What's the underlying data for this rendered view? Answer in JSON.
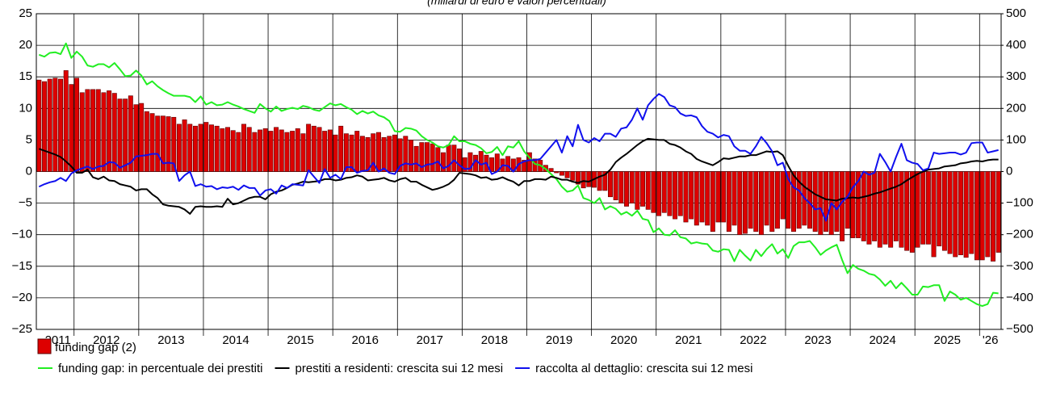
{
  "chart_data": {
    "type": "combo",
    "title": "(miliardi di euro e valori percentuali)",
    "categories": [
      null,
      null,
      null,
      null,
      "2011",
      null,
      null,
      null,
      null,
      null,
      null,
      null,
      null,
      "2012",
      null,
      null,
      null,
      null,
      null,
      null,
      null,
      null,
      null,
      null,
      null,
      "2013",
      null,
      null,
      null,
      null,
      null,
      null,
      null,
      null,
      null,
      null,
      null,
      "2014",
      null,
      null,
      null,
      null,
      null,
      null,
      null,
      null,
      null,
      null,
      null,
      "2015",
      null,
      null,
      null,
      null,
      null,
      null,
      null,
      null,
      null,
      null,
      null,
      "2016",
      null,
      null,
      null,
      null,
      null,
      null,
      null,
      null,
      null,
      null,
      null,
      "2017",
      null,
      null,
      null,
      null,
      null,
      null,
      null,
      null,
      null,
      null,
      null,
      "2018",
      null,
      null,
      null,
      null,
      null,
      null,
      null,
      null,
      null,
      null,
      null,
      "2019",
      null,
      null,
      null,
      null,
      null,
      null,
      null,
      null,
      null,
      null,
      null,
      "2020",
      null,
      null,
      null,
      null,
      null,
      null,
      null,
      null,
      null,
      null,
      null,
      "2021",
      null,
      null,
      null,
      null,
      null,
      null,
      null,
      null,
      null,
      null,
      null,
      "2022",
      null,
      null,
      null,
      null,
      null,
      null,
      null,
      null,
      null,
      null,
      null,
      "2023",
      null,
      null,
      null,
      null,
      null,
      null,
      null,
      null,
      null,
      null,
      null,
      "2024",
      null,
      null,
      null,
      null,
      null,
      null,
      null,
      null,
      null,
      null,
      null,
      "2025",
      null,
      null,
      null,
      null,
      null,
      null,
      null,
      "'26",
      null
    ],
    "ylim": [
      -25,
      25
    ],
    "yticks": [
      25,
      20,
      15,
      10,
      5,
      0,
      {
        "value": -5,
        "label": "−5"
      },
      {
        "value": -10,
        "label": "−10"
      },
      {
        "value": -15,
        "label": "−15"
      },
      {
        "value": -20,
        "label": "−20"
      },
      {
        "value": -25,
        "label": "−25"
      }
    ],
    "y2lim": [
      -500,
      500
    ],
    "y2ticks": [
      500,
      400,
      300,
      200,
      100,
      0,
      {
        "value": -100,
        "label": "−100"
      },
      {
        "value": -200,
        "label": "−200"
      },
      {
        "value": -300,
        "label": "−300"
      },
      {
        "value": -400,
        "label": "−400"
      },
      {
        "value": -500,
        "label": "−500"
      }
    ],
    "grid": true,
    "series": [
      {
        "name": "funding gap (2)",
        "type": "bar",
        "axis": "y2",
        "color": "#dd0000",
        "values": [
          290,
          285,
          293,
          296,
          293,
          320,
          276,
          296,
          250,
          260,
          260,
          260,
          250,
          256,
          248,
          230,
          230,
          240,
          212,
          216,
          190,
          184,
          176,
          176,
          174,
          172,
          150,
          164,
          150,
          144,
          150,
          156,
          148,
          144,
          136,
          140,
          130,
          124,
          150,
          140,
          124,
          132,
          136,
          128,
          140,
          132,
          124,
          128,
          136,
          120,
          150,
          144,
          140,
          128,
          132,
          116,
          144,
          120,
          116,
          128,
          112,
          108,
          120,
          124,
          108,
          112,
          116,
          104,
          112,
          100,
          80,
          92,
          92,
          88,
          76,
          60,
          84,
          84,
          72,
          44,
          60,
          52,
          64,
          52,
          44,
          56,
          40,
          48,
          40,
          44,
          36,
          60,
          40,
          36,
          20,
          10,
          -4,
          -12,
          -20,
          -28,
          -40,
          -52,
          -48,
          -50,
          -60,
          -60,
          -80,
          -90,
          -100,
          -110,
          -100,
          -120,
          -110,
          -120,
          -130,
          -140,
          -130,
          -140,
          -150,
          -140,
          -160,
          -150,
          -170,
          -160,
          -170,
          -190,
          -160,
          -160,
          -190,
          -170,
          -200,
          -196,
          -180,
          -190,
          -200,
          -170,
          -190,
          -180,
          -150,
          -180,
          -190,
          -180,
          -170,
          -180,
          -190,
          -200,
          -190,
          -200,
          -190,
          -220,
          -180,
          -210,
          -210,
          -220,
          -230,
          -220,
          -240,
          -230,
          -240,
          -220,
          -240,
          -250,
          -256,
          -240,
          -230,
          -230,
          -270,
          -236,
          -250,
          -260,
          -270,
          -264,
          -272,
          -260,
          -280,
          -280,
          -270,
          -284,
          -256
        ]
      },
      {
        "name": "funding gap: in percentuale dei prestiti",
        "type": "line",
        "color": "#22ee22",
        "values": [
          18.5,
          18.2,
          18.8,
          18.9,
          18.6,
          20.3,
          18.0,
          19.0,
          18.2,
          16.8,
          16.6,
          17.0,
          17.0,
          16.5,
          17.2,
          16.2,
          15.1,
          15.2,
          16.0,
          15.2,
          13.8,
          14.3,
          13.5,
          12.9,
          12.4,
          12.0,
          12.0,
          12.0,
          11.8,
          11.0,
          11.9,
          10.6,
          11.0,
          10.5,
          10.6,
          11.0,
          10.6,
          10.3,
          9.9,
          9.6,
          9.3,
          10.7,
          10.0,
          9.5,
          10.3,
          9.6,
          9.9,
          10.1,
          9.9,
          10.4,
          10.2,
          9.8,
          9.6,
          10.2,
          10.8,
          10.5,
          10.7,
          10.2,
          9.8,
          9.1,
          9.6,
          9.2,
          9.5,
          8.9,
          8.6,
          8.0,
          6.4,
          6.3,
          6.9,
          6.8,
          6.5,
          5.6,
          5.0,
          4.6,
          4.0,
          3.8,
          4.2,
          5.6,
          4.8,
          4.8,
          4.4,
          4.2,
          3.7,
          2.9,
          3.1,
          3.9,
          2.6,
          4.0,
          3.8,
          4.8,
          3.2,
          2.2,
          1.2,
          1.0,
          0.4,
          -0.4,
          -1.2,
          -2.4,
          -3.2,
          -3.0,
          -2.2,
          -4.2,
          -4.5,
          -5.0,
          -4.2,
          -6.0,
          -5.5,
          -5.9,
          -6.8,
          -6.4,
          -7.0,
          -6.2,
          -7.5,
          -7.7,
          -9.6,
          -9.0,
          -10.0,
          -10.1,
          -9.3,
          -10.4,
          -10.6,
          -11.4,
          -11.2,
          -11.4,
          -11.5,
          -12.5,
          -12.7,
          -12.3,
          -12.4,
          -14.2,
          -12.4,
          -13.3,
          -14.1,
          -12.4,
          -13.4,
          -12.3,
          -11.5,
          -13.0,
          -12.3,
          -13.7,
          -11.8,
          -11.2,
          -11.2,
          -11.0,
          -12.0,
          -13.2,
          -12.5,
          -12.0,
          -11.6,
          -14.0,
          -16.1,
          -14.8,
          -15.4,
          -15.7,
          -16.2,
          -16.4,
          -17.1,
          -18.1,
          -17.3,
          -18.5,
          -17.6,
          -18.5,
          -19.5,
          -19.5,
          -18.2,
          -18.3,
          -18.0,
          -18.0,
          -20.5,
          -19.0,
          -19.5,
          -20.3,
          -20.0,
          -20.5,
          -21.0,
          -21.3,
          -21.0,
          -19.2,
          -19.3
        ]
      },
      {
        "name": "prestiti a residenti: crescita sui 12 mesi",
        "type": "line",
        "color": "#000000",
        "values": [
          3.6,
          3.3,
          3.0,
          2.7,
          2.3,
          1.6,
          0.8,
          -0.2,
          -0.2,
          0.3,
          -0.9,
          -1.2,
          -0.8,
          -1.4,
          -1.5,
          -2.0,
          -2.2,
          -2.4,
          -3.0,
          -2.8,
          -2.8,
          -3.6,
          -4.2,
          -5.2,
          -5.4,
          -5.5,
          -5.6,
          -6.0,
          -6.7,
          -5.6,
          -5.5,
          -5.6,
          -5.6,
          -5.5,
          -5.6,
          -4.3,
          -5.2,
          -5.0,
          -4.6,
          -4.2,
          -4.0,
          -4.0,
          -4.4,
          -3.6,
          -3.2,
          -3.0,
          -2.6,
          -2.1,
          -1.9,
          -1.6,
          -1.7,
          -1.6,
          -1.5,
          -1.2,
          -1.2,
          -1.4,
          -1.3,
          -1.0,
          -0.9,
          -0.6,
          -0.8,
          -1.4,
          -1.3,
          -1.2,
          -1.0,
          -1.4,
          -1.6,
          -1.2,
          -1.0,
          -1.6,
          -1.6,
          -2.1,
          -2.5,
          -2.9,
          -2.7,
          -2.4,
          -2.0,
          -1.3,
          -0.2,
          -0.3,
          -0.4,
          -0.6,
          -1.0,
          -0.9,
          -1.3,
          -1.2,
          -0.9,
          -1.3,
          -1.6,
          -2.2,
          -1.5,
          -1.5,
          -1.2,
          -1.2,
          -1.3,
          -0.8,
          -1.0,
          -1.3,
          -1.3,
          -1.6,
          -1.8,
          -1.5,
          -1.6,
          -1.2,
          -0.8,
          -0.5,
          0.3,
          1.5,
          2.2,
          2.8,
          3.5,
          4.2,
          4.8,
          5.2,
          5.1,
          5.0,
          5.0,
          4.4,
          4.2,
          3.8,
          3.2,
          2.8,
          2.0,
          1.6,
          1.3,
          1.0,
          1.5,
          2.1,
          2.0,
          2.2,
          2.4,
          2.4,
          2.6,
          2.6,
          2.9,
          3.2,
          3.1,
          3.2,
          2.6,
          0.9,
          -0.6,
          -1.6,
          -2.4,
          -3.0,
          -3.6,
          -4.0,
          -4.4,
          -4.5,
          -4.6,
          -4.3,
          -4.2,
          -4.1,
          -4.2,
          -4.0,
          -3.8,
          -3.5,
          -3.3,
          -3.0,
          -2.7,
          -2.4,
          -2.0,
          -1.4,
          -0.9,
          -0.4,
          0.0,
          0.3,
          0.4,
          0.5,
          0.8,
          0.9,
          1.0,
          1.3,
          1.4,
          1.6,
          1.7,
          1.6,
          1.8,
          1.9,
          1.9
        ]
      },
      {
        "name": "raccolta al dettaglio: crescita sui 12 mesi",
        "type": "line",
        "color": "#1010ee",
        "values": [
          -2.4,
          -2.0,
          -1.7,
          -1.5,
          -1.0,
          -1.5,
          -0.3,
          0.2,
          0.5,
          0.8,
          0.4,
          0.8,
          0.9,
          1.5,
          1.4,
          0.6,
          1.0,
          1.4,
          2.4,
          2.5,
          2.6,
          2.8,
          2.8,
          1.3,
          1.4,
          1.3,
          -1.5,
          -0.6,
          0.0,
          -2.3,
          -2.0,
          -2.4,
          -2.3,
          -2.8,
          -2.5,
          -2.6,
          -2.4,
          -2.9,
          -2.2,
          -2.6,
          -2.6,
          -3.8,
          -3.0,
          -2.8,
          -3.5,
          -2.2,
          -2.6,
          -2.0,
          -2.1,
          -2.2,
          0.2,
          -0.8,
          -1.8,
          0.4,
          -1.0,
          -0.5,
          -1.2,
          0.7,
          0.7,
          -0.2,
          0.1,
          0.2,
          1.4,
          0.0,
          0.5,
          -0.2,
          -0.4,
          0.9,
          1.3,
          1.1,
          1.3,
          0.7,
          1.1,
          1.2,
          1.6,
          0.5,
          0.9,
          1.8,
          1.0,
          0.4,
          0.5,
          1.8,
          1.1,
          1.4,
          -0.4,
          0.0,
          1.0,
          0.9,
          0.0,
          1.2,
          1.6,
          1.8,
          1.8,
          2.0,
          3.0,
          4.0,
          5.0,
          3.0,
          5.6,
          4.0,
          7.4,
          5.0,
          4.6,
          5.3,
          4.8,
          6.0,
          6.0,
          5.5,
          6.8,
          7.0,
          8.2,
          10.0,
          8.2,
          10.5,
          11.5,
          12.3,
          11.8,
          10.5,
          10.2,
          9.2,
          8.8,
          8.9,
          8.6,
          7.2,
          6.3,
          6.0,
          5.4,
          5.8,
          5.6,
          4.0,
          3.3,
          3.3,
          2.8,
          4.0,
          5.5,
          4.5,
          3.2,
          1.0,
          1.4,
          -1.2,
          -2.5,
          -3.0,
          -4.2,
          -5.0,
          -6.0,
          -5.8,
          -7.8,
          -5.0,
          -6.0,
          -4.8,
          -4.0,
          -2.5,
          -1.5,
          0.0,
          -0.5,
          -0.2,
          2.8,
          1.5,
          0.0,
          2.3,
          4.4,
          1.8,
          1.4,
          1.2,
          0.2,
          0.5,
          3.0,
          2.8,
          2.9,
          3.0,
          3.0,
          2.7,
          3.0,
          4.5,
          4.6,
          4.6,
          3.0,
          3.2,
          3.4
        ]
      }
    ]
  }
}
